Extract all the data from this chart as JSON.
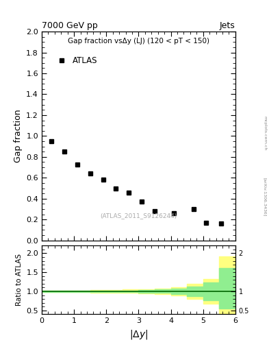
{
  "title_top": "7000 GeV pp",
  "title_right": "Jets",
  "main_title": "Gap fraction vsΔy (LJ) (120 < pT < 150)",
  "atlas_label": "ATLAS",
  "watermark": "(ATLAS_2011_S9126244)",
  "arxiv_label": "[arXiv:1306.3436]",
  "mcplots_label": "mcplots.cern.ch",
  "data_x": [
    0.3,
    0.7,
    1.1,
    1.5,
    1.9,
    2.3,
    2.7,
    3.1,
    3.5,
    4.1,
    4.7,
    5.1,
    5.55
  ],
  "data_y": [
    0.95,
    0.85,
    0.73,
    0.64,
    0.58,
    0.5,
    0.46,
    0.37,
    0.28,
    0.26,
    0.3,
    0.17,
    0.165
  ],
  "main_ylabel": "Gap fraction",
  "main_ylim": [
    0,
    2
  ],
  "main_xlim": [
    0,
    6
  ],
  "main_yticks": [
    0,
    0.2,
    0.4,
    0.6,
    0.8,
    1.0,
    1.2,
    1.4,
    1.6,
    1.8,
    2.0
  ],
  "main_xticks": [
    0,
    1,
    2,
    3,
    4,
    5,
    6
  ],
  "ratio_ylabel": "Ratio to ATLAS",
  "ratio_ylim": [
    0.4,
    2.2
  ],
  "ratio_xlim": [
    0,
    6
  ],
  "ratio_yticks": [
    0.5,
    1.0,
    1.5,
    2.0
  ],
  "ratio_xticks": [
    0,
    1,
    2,
    3,
    4,
    5,
    6
  ],
  "yellow_band_x": [
    0.0,
    0.5,
    1.0,
    1.5,
    2.0,
    2.5,
    3.0,
    3.5,
    4.0,
    4.5,
    5.0,
    5.5,
    6.0
  ],
  "yellow_band_lo": [
    0.975,
    0.975,
    0.975,
    0.965,
    0.962,
    0.955,
    0.945,
    0.925,
    0.885,
    0.8,
    0.68,
    0.38,
    0.38
  ],
  "yellow_band_hi": [
    1.025,
    1.025,
    1.025,
    1.035,
    1.038,
    1.045,
    1.055,
    1.075,
    1.115,
    1.2,
    1.32,
    1.92,
    1.92
  ],
  "green_band_x": [
    0.0,
    0.5,
    1.0,
    1.5,
    2.0,
    2.5,
    3.0,
    3.5,
    4.0,
    4.5,
    5.0,
    5.5,
    6.0
  ],
  "green_band_lo": [
    0.988,
    0.988,
    0.988,
    0.982,
    0.98,
    0.975,
    0.968,
    0.955,
    0.925,
    0.87,
    0.76,
    0.55,
    0.55
  ],
  "green_band_hi": [
    1.012,
    1.012,
    1.012,
    1.018,
    1.02,
    1.025,
    1.032,
    1.045,
    1.075,
    1.13,
    1.24,
    1.62,
    1.62
  ],
  "marker_color": "black",
  "marker_style": "s",
  "marker_size": 4,
  "background_color": "#ffffff",
  "ratio_line_color": "#006400",
  "yellow_color": "#ffff80",
  "green_color": "#90ee90"
}
